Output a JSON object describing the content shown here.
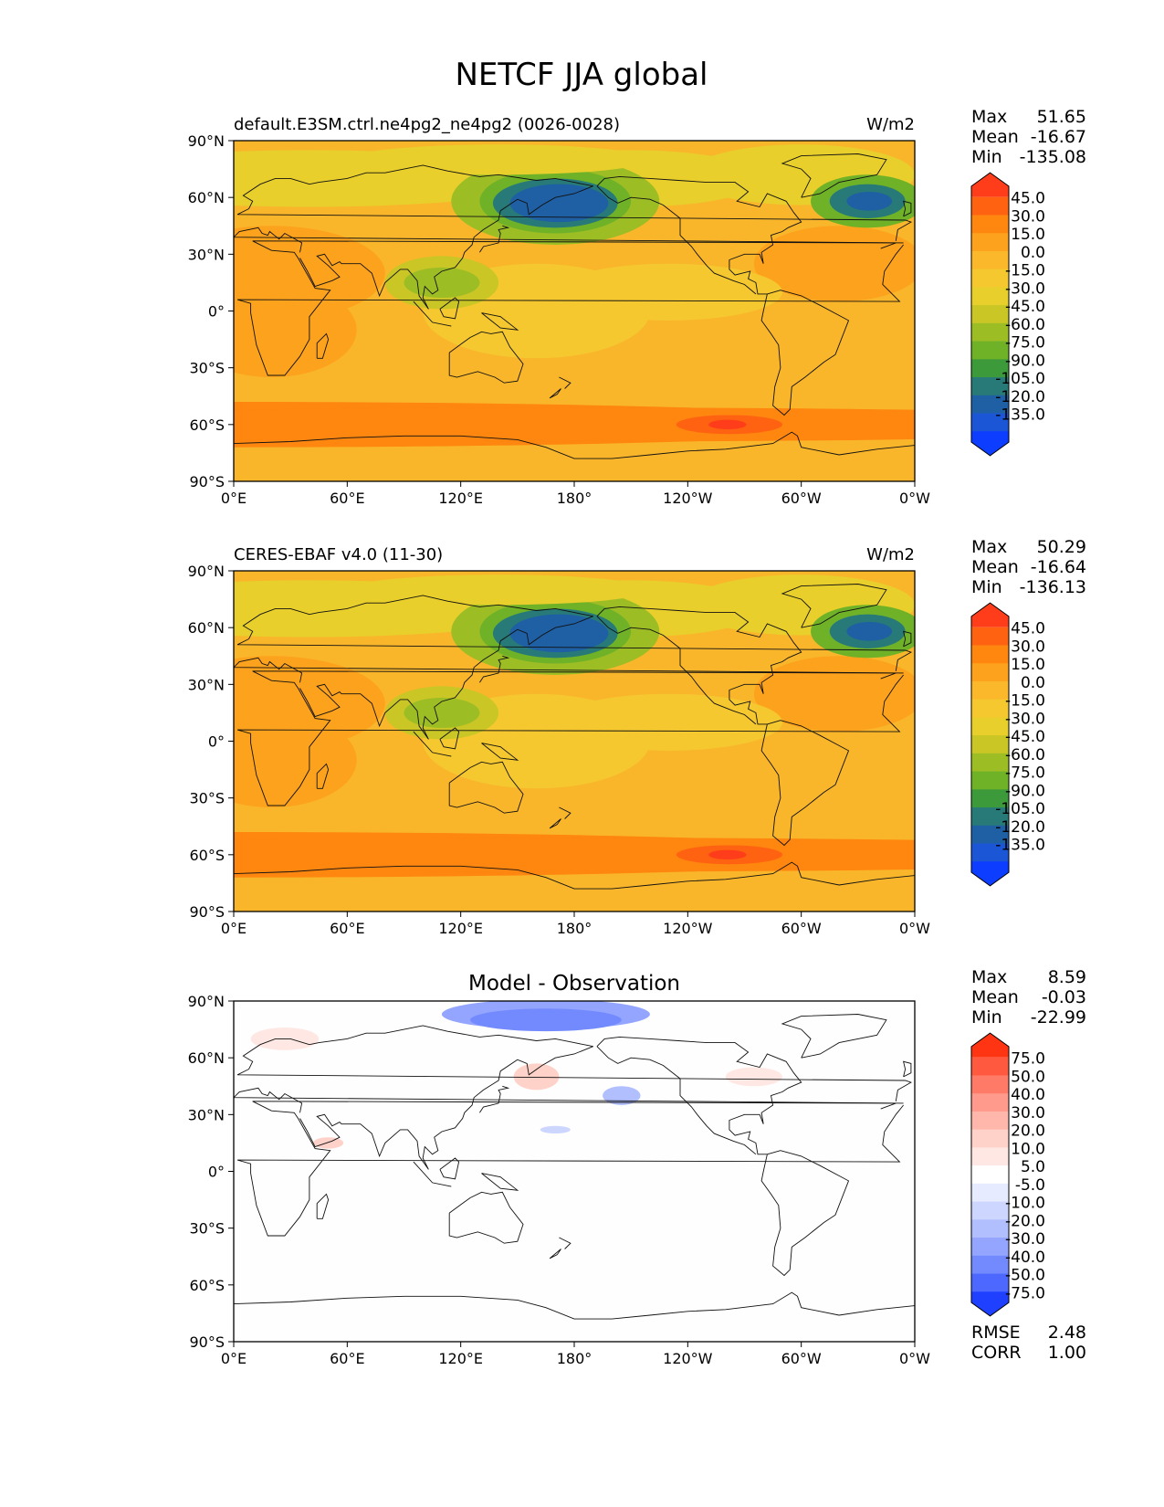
{
  "figure": {
    "title": "NETCF JJA global"
  },
  "axis_labels": {
    "lat_ticks": [
      "90°N",
      "60°N",
      "30°N",
      "0°",
      "30°S",
      "60°S",
      "90°S"
    ],
    "lon_ticks": [
      "0°E",
      "60°E",
      "120°E",
      "180°",
      "120°W",
      "60°W",
      "0°W"
    ]
  },
  "panels": [
    {
      "id": "model",
      "title_left": "default.E3SM.ctrl.ne4pg2_ne4pg2 (0026-0028)",
      "title_center": "",
      "units": "W/m2",
      "stats": {
        "max_label": "Max",
        "max": "51.65",
        "mean_label": "Mean",
        "mean": "-16.67",
        "min_label": "Min",
        "min": "-135.08"
      },
      "colorbar_labels": [
        "45.0",
        "30.0",
        "15.0",
        "0.0",
        "-15.0",
        "-30.0",
        "-45.0",
        "-60.0",
        "-75.0",
        "-90.0",
        "-105.0",
        "-120.0",
        "-135.0"
      ],
      "colorbar_colors": [
        "#ff3d1a",
        "#ff6210",
        "#ff860f",
        "#fda21c",
        "#fab82a",
        "#f5c830",
        "#e8cf2b",
        "#c9c626",
        "#9dbd25",
        "#6fb228",
        "#3d9a3a",
        "#277a78",
        "#1f5fa4",
        "#1a56d6",
        "#0d3dff"
      ]
    },
    {
      "id": "obs",
      "title_left": "CERES-EBAF v4.0 (11-30)",
      "title_center": "",
      "units": "W/m2",
      "stats": {
        "max_label": "Max",
        "max": "50.29",
        "mean_label": "Mean",
        "mean": "-16.64",
        "min_label": "Min",
        "min": "-136.13"
      },
      "colorbar_labels": [
        "45.0",
        "30.0",
        "15.0",
        "0.0",
        "-15.0",
        "-30.0",
        "-45.0",
        "-60.0",
        "-75.0",
        "-90.0",
        "-105.0",
        "-120.0",
        "-135.0"
      ],
      "colorbar_colors": [
        "#ff3d1a",
        "#ff6210",
        "#ff860f",
        "#fda21c",
        "#fab82a",
        "#f5c830",
        "#e8cf2b",
        "#c9c626",
        "#9dbd25",
        "#6fb228",
        "#3d9a3a",
        "#277a78",
        "#1f5fa4",
        "#1a56d6",
        "#0d3dff"
      ]
    },
    {
      "id": "diff",
      "title_left": "",
      "title_center": "Model - Observation",
      "units": "",
      "stats": {
        "max_label": "Max",
        "max": "8.59",
        "mean_label": "Mean",
        "mean": "-0.03",
        "min_label": "Min",
        "min": "-22.99"
      },
      "colorbar_labels": [
        "75.0",
        "50.0",
        "40.0",
        "30.0",
        "20.0",
        "10.0",
        "5.0",
        "-5.0",
        "-10.0",
        "-20.0",
        "-30.0",
        "-40.0",
        "-50.0",
        "-75.0"
      ],
      "colorbar_colors": [
        "#ff3412",
        "#ff5a40",
        "#ff7b68",
        "#ff9a8c",
        "#ffb7ab",
        "#ffd2c9",
        "#ffe8e3",
        "#ffffff",
        "#e6ebff",
        "#cdd6ff",
        "#b1bfff",
        "#93a5ff",
        "#738aff",
        "#4d68ff",
        "#1f40ff"
      ],
      "rmse_label": "RMSE",
      "rmse": "2.48",
      "corr_label": "CORR",
      "corr": "1.00"
    }
  ],
  "map_layers": {
    "background_model": "#f9b62b",
    "background_diff": "#fefefe"
  }
}
